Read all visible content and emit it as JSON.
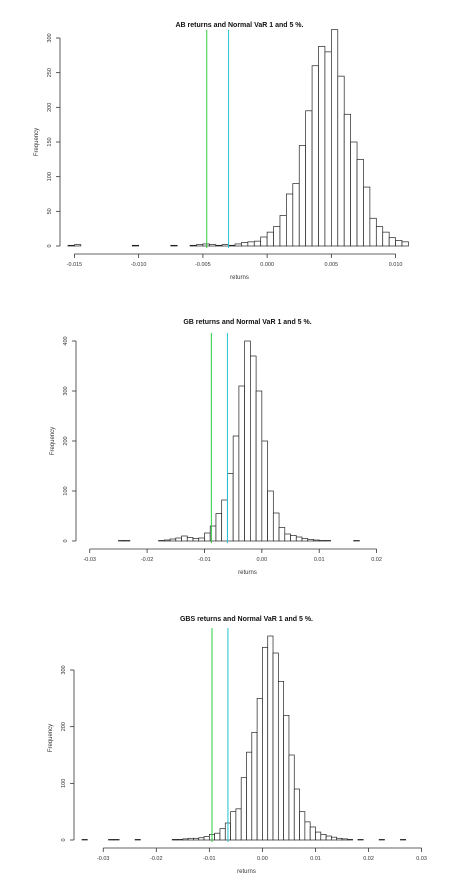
{
  "chart_data": [
    {
      "type": "histogram",
      "title": "AB returns and Normal VaR 1 and 5 %.",
      "xlabel": "returns",
      "ylabel": "Frequency",
      "xlim": [
        -0.0155,
        0.0112
      ],
      "ylim": [
        0,
        300
      ],
      "xticks": [
        -0.015,
        -0.01,
        -0.005,
        0.0,
        0.005,
        0.01
      ],
      "xtick_labels": [
        "-0.015",
        "-0.010",
        "-0.005",
        "0.000",
        "0.005",
        "0.010"
      ],
      "yticks": [
        0,
        50,
        100,
        150,
        200,
        250,
        300
      ],
      "ytick_labels": [
        "0",
        "50",
        "100",
        "150",
        "200",
        "250",
        "300"
      ],
      "bin_start": -0.0155,
      "bin_width": 0.0005,
      "counts": [
        1,
        2,
        0,
        0,
        0,
        0,
        0,
        0,
        0,
        0,
        1,
        0,
        0,
        0,
        0,
        0,
        1,
        0,
        0,
        1,
        2,
        3,
        2,
        1,
        2,
        1,
        3,
        5,
        6,
        7,
        13,
        20,
        28,
        44,
        75,
        90,
        145,
        195,
        260,
        288,
        280,
        312,
        245,
        190,
        150,
        125,
        85,
        40,
        28,
        20,
        12,
        8,
        6,
        4,
        3,
        1,
        1,
        0,
        0,
        0,
        0,
        0,
        0,
        0,
        0,
        0,
        0,
        0,
        0,
        0,
        0,
        0,
        0,
        0,
        0,
        0,
        1,
        0,
        0,
        0,
        0,
        0,
        0,
        0,
        0,
        0,
        0,
        0,
        0,
        0,
        0,
        0,
        0,
        0,
        0,
        0,
        0,
        0,
        0,
        0,
        0,
        0,
        0,
        0,
        0,
        0,
        0,
        0,
        0,
        0,
        0,
        0,
        0,
        0,
        0,
        0,
        0,
        0,
        0,
        0,
        0,
        0,
        0,
        0,
        0,
        0,
        0,
        0,
        0,
        0,
        0,
        0,
        0,
        0,
        0,
        0,
        0,
        0,
        0,
        0,
        0,
        0,
        0,
        0,
        0,
        0,
        0,
        0,
        0,
        0,
        0,
        0,
        0,
        0,
        0,
        0,
        0,
        0,
        0,
        0,
        0,
        0,
        0,
        0,
        0,
        0,
        0,
        0,
        0,
        0,
        0,
        0,
        0,
        0,
        0,
        0,
        0,
        0,
        0,
        0,
        0,
        0,
        0,
        0,
        0,
        0,
        0,
        0,
        0,
        0,
        0,
        0,
        0,
        0,
        0,
        0,
        0,
        0,
        0,
        0,
        0,
        0,
        0,
        0,
        0,
        0,
        0
      ],
      "var_lines": [
        {
          "value": -0.0047,
          "color": "#2ecc40"
        },
        {
          "value": -0.003,
          "color": "#22c4d8"
        }
      ]
    },
    {
      "type": "histogram",
      "title": "GB returns and Normal VaR 1 and 5 %.",
      "xlabel": "returns",
      "ylabel": "Frequency",
      "xlim": [
        -0.031,
        0.026
      ],
      "ylim": [
        0,
        400
      ],
      "xticks": [
        -0.03,
        -0.02,
        -0.01,
        0.0,
        0.01,
        0.02
      ],
      "xtick_labels": [
        "-0.03",
        "-0.02",
        "-0.01",
        "0.00",
        "0.01",
        "0.02"
      ],
      "yticks": [
        0,
        100,
        200,
        300,
        400
      ],
      "ytick_labels": [
        "0",
        "100",
        "200",
        "300",
        "400"
      ],
      "bin_start": -0.031,
      "bin_width": 0.001,
      "counts": [
        0,
        0,
        0,
        0,
        0,
        0,
        1,
        1,
        0,
        0,
        0,
        0,
        0,
        1,
        2,
        4,
        6,
        10,
        7,
        5,
        6,
        16,
        30,
        55,
        82,
        135,
        210,
        310,
        400,
        370,
        300,
        200,
        100,
        56,
        27,
        14,
        11,
        8,
        5,
        3,
        2,
        1,
        1,
        0,
        0,
        0,
        0,
        1,
        0,
        0,
        0,
        0,
        0,
        0,
        0,
        0,
        0,
        0
      ],
      "var_lines": [
        {
          "value": -0.0088,
          "color": "#2ecc40"
        },
        {
          "value": -0.006,
          "color": "#22c4d8"
        }
      ]
    },
    {
      "type": "histogram",
      "title": "GBS returns and Normal VaR 1 and 5 %.",
      "xlabel": "returns",
      "ylabel": "Frequency",
      "xlim": [
        -0.034,
        0.028
      ],
      "ylim": [
        0,
        360
      ],
      "xticks": [
        -0.03,
        -0.02,
        -0.01,
        0.0,
        0.01,
        0.02,
        0.03
      ],
      "xtick_labels": [
        "-0.03",
        "-0.02",
        "-0.01",
        "0.00",
        "0.01",
        "0.02",
        "0.03"
      ],
      "yticks": [
        0,
        100,
        200,
        300
      ],
      "ytick_labels": [
        "0",
        "100",
        "200",
        "300"
      ],
      "bin_start": -0.034,
      "bin_width": 0.001,
      "counts": [
        1,
        0,
        0,
        0,
        0,
        1,
        1,
        0,
        0,
        0,
        1,
        0,
        0,
        0,
        0,
        0,
        0,
        1,
        1,
        2,
        3,
        3,
        4,
        6,
        10,
        12,
        20,
        30,
        50,
        55,
        110,
        155,
        190,
        250,
        340,
        360,
        330,
        280,
        220,
        150,
        90,
        50,
        32,
        23,
        14,
        10,
        7,
        5,
        3,
        2,
        1,
        0,
        1,
        0,
        0,
        0,
        1,
        0,
        0,
        0,
        1,
        0
      ],
      "var_lines": [
        {
          "value": -0.0095,
          "color": "#2ecc40"
        },
        {
          "value": -0.0065,
          "color": "#22c4d8"
        }
      ]
    }
  ]
}
